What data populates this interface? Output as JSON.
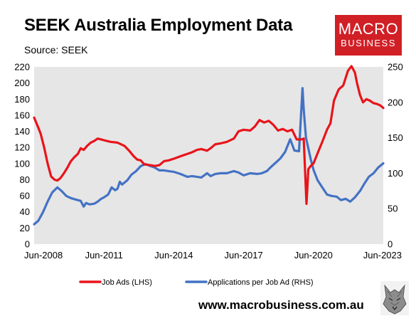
{
  "header": {
    "title": "SEEK Australia Employment Data",
    "source": "Source: SEEK"
  },
  "logo": {
    "line1": "MACRO",
    "line2": "BUSINESS"
  },
  "footer": {
    "url": "www.macrobusiness.com.au"
  },
  "colors": {
    "job_ads": "#e8141a",
    "applications": "#4472c4",
    "plot_bg": "#e6e6e6",
    "logo_bg": "#d11f26"
  },
  "chart_data": {
    "type": "line",
    "title": "SEEK Australia Employment Data",
    "x_ticks": [
      "Jun-2008",
      "Jun-2011",
      "Jun-2014",
      "Jun-2017",
      "Jun-2020",
      "Jun-2023"
    ],
    "x_range": [
      2008.42,
      2023.42
    ],
    "y_left": {
      "ticks": [
        0,
        20,
        40,
        60,
        80,
        100,
        120,
        140,
        160,
        180,
        200,
        220
      ],
      "ylim": [
        0,
        220
      ]
    },
    "y_right": {
      "ticks": [
        0,
        50,
        100,
        150,
        200,
        250
      ],
      "ylim": [
        0,
        250
      ]
    },
    "grid": false,
    "legend_position": "bottom",
    "series": [
      {
        "name": "Job Ads (LHS)",
        "axis": "left",
        "x": [
          2008.42,
          2008.55,
          2008.7,
          2008.85,
          2009.0,
          2009.15,
          2009.3,
          2009.42,
          2009.55,
          2009.7,
          2009.85,
          2010.0,
          2010.15,
          2010.3,
          2010.42,
          2010.55,
          2010.7,
          2010.85,
          2011.0,
          2011.15,
          2011.3,
          2011.42,
          2011.7,
          2012.0,
          2012.3,
          2012.5,
          2012.7,
          2012.85,
          2013.0,
          2013.15,
          2013.42,
          2013.6,
          2013.8,
          2014.0,
          2014.2,
          2014.42,
          2014.7,
          2015.0,
          2015.2,
          2015.42,
          2015.6,
          2015.85,
          2016.0,
          2016.2,
          2016.42,
          2016.7,
          2017.0,
          2017.2,
          2017.42,
          2017.7,
          2017.9,
          2018.1,
          2018.3,
          2018.5,
          2018.7,
          2018.9,
          2019.1,
          2019.3,
          2019.5,
          2019.7,
          2019.9,
          2020.0,
          2020.12,
          2020.2,
          2020.3,
          2020.42,
          2020.6,
          2020.8,
          2021.0,
          2021.15,
          2021.3,
          2021.5,
          2021.7,
          2021.9,
          2022.05,
          2022.2,
          2022.3,
          2022.42,
          2022.55,
          2022.7,
          2022.85,
          2023.0,
          2023.15,
          2023.3,
          2023.42
        ],
        "values": [
          157,
          148,
          137,
          120,
          100,
          84,
          80,
          79,
          82,
          88,
          95,
          103,
          108,
          112,
          119,
          117,
          122,
          126,
          128,
          131,
          130,
          129,
          127,
          126,
          122,
          116,
          109,
          105,
          104,
          99,
          98,
          97,
          98,
          103,
          104,
          106,
          109,
          112,
          114,
          117,
          118,
          116,
          119,
          124,
          125,
          127,
          131,
          140,
          142,
          141,
          146,
          154,
          151,
          153,
          148,
          141,
          143,
          140,
          142,
          130,
          130,
          131,
          50,
          93,
          97,
          100,
          113,
          127,
          142,
          150,
          178,
          192,
          197,
          215,
          221,
          213,
          199,
          185,
          176,
          180,
          178,
          175,
          174,
          172,
          169
        ]
      },
      {
        "name": "Applications per Job Ad (RHS)",
        "axis": "right",
        "x": [
          2008.42,
          2008.6,
          2008.8,
          2009.0,
          2009.2,
          2009.42,
          2009.6,
          2009.8,
          2010.0,
          2010.2,
          2010.42,
          2010.55,
          2010.65,
          2010.8,
          2011.0,
          2011.15,
          2011.3,
          2011.42,
          2011.6,
          2011.75,
          2011.9,
          2012.0,
          2012.1,
          2012.2,
          2012.42,
          2012.6,
          2012.8,
          2013.0,
          2013.2,
          2013.42,
          2013.6,
          2013.8,
          2014.0,
          2014.2,
          2014.42,
          2014.7,
          2015.0,
          2015.2,
          2015.42,
          2015.6,
          2015.85,
          2016.0,
          2016.2,
          2016.42,
          2016.7,
          2017.0,
          2017.2,
          2017.42,
          2017.7,
          2018.0,
          2018.2,
          2018.42,
          2018.6,
          2018.8,
          2019.0,
          2019.2,
          2019.42,
          2019.6,
          2019.8,
          2019.95,
          2020.0,
          2020.1,
          2020.2,
          2020.3,
          2020.42,
          2020.6,
          2020.8,
          2021.0,
          2021.2,
          2021.42,
          2021.6,
          2021.8,
          2022.0,
          2022.2,
          2022.42,
          2022.6,
          2022.8,
          2023.0,
          2023.2,
          2023.42
        ],
        "values": [
          28,
          33,
          45,
          60,
          73,
          80,
          75,
          68,
          65,
          63,
          61,
          53,
          58,
          56,
          57,
          60,
          64,
          66,
          70,
          80,
          76,
          78,
          88,
          84,
          90,
          98,
          103,
          110,
          113,
          110,
          108,
          104,
          104,
          103,
          102,
          99,
          95,
          96,
          95,
          94,
          100,
          96,
          99,
          100,
          100,
          103,
          101,
          97,
          100,
          99,
          100,
          103,
          109,
          115,
          121,
          130,
          148,
          132,
          131,
          220,
          190,
          150,
          135,
          120,
          105,
          90,
          80,
          70,
          68,
          67,
          62,
          64,
          60,
          66,
          75,
          85,
          95,
          100,
          108,
          114
        ]
      }
    ]
  }
}
